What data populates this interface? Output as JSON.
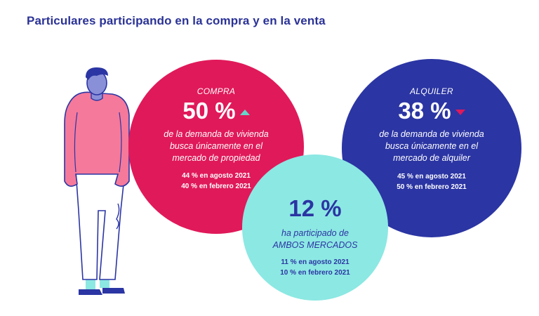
{
  "title": "Particulares participando en la compra y en la venta",
  "colors": {
    "compra": "#e0195a",
    "alquiler": "#2b35a3",
    "ambos": "#8ce8e3",
    "title": "#2a3296"
  },
  "compra": {
    "label": "COMPRA",
    "value": "50 %",
    "trend": "up",
    "desc": [
      "de la demanda de vivienda",
      "busca únicamente en el",
      "mercado de propiedad"
    ],
    "history": [
      "44 % en agosto 2021",
      "40 % en febrero 2021"
    ]
  },
  "alquiler": {
    "label": "ALQUILER",
    "value": "38 %",
    "trend": "down",
    "desc": [
      "de la demanda de vivienda",
      "busca únicamente en el",
      "mercado de alquiler"
    ],
    "history": [
      "45 % en agosto 2021",
      "50 % en febrero 2021"
    ]
  },
  "ambos": {
    "value": "12 %",
    "desc": [
      "ha participado de",
      "AMBOS MERCADOS"
    ],
    "history": [
      "11 % en agosto 2021",
      "10 % en febrero 2021"
    ]
  }
}
